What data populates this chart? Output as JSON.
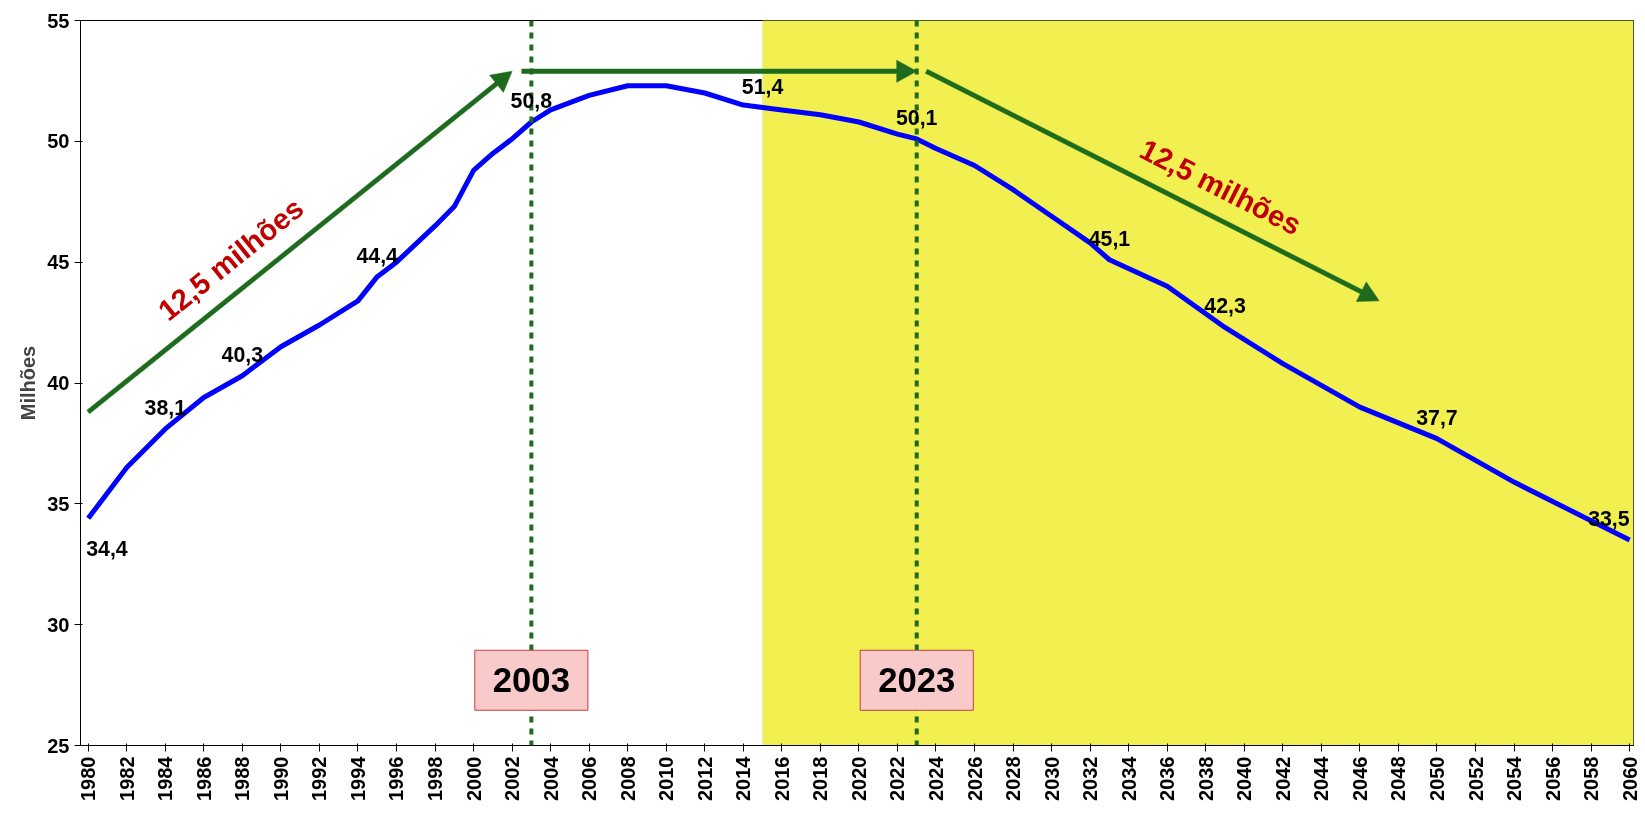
{
  "chart_data": {
    "type": "line",
    "ylabel": "Milhões",
    "x": [
      1980,
      1982,
      1984,
      1986,
      1988,
      1990,
      1992,
      1994,
      1995,
      1996,
      1998,
      1999,
      2000,
      2001,
      2002,
      2003,
      2004,
      2006,
      2008,
      2010,
      2012,
      2014,
      2015,
      2016,
      2018,
      2020,
      2022,
      2023,
      2024,
      2026,
      2028,
      2030,
      2032,
      2033,
      2036,
      2039,
      2042,
      2046,
      2050,
      2054,
      2058,
      2060
    ],
    "series": [
      {
        "color": "#0000ff",
        "values": [
          34.4,
          36.5,
          38.1,
          39.4,
          40.3,
          41.5,
          42.4,
          43.4,
          44.4,
          45.0,
          46.5,
          47.3,
          48.8,
          49.5,
          50.1,
          50.8,
          51.3,
          51.9,
          52.3,
          52.3,
          52.0,
          51.5,
          51.4,
          51.3,
          51.1,
          50.8,
          50.3,
          50.1,
          49.7,
          49.0,
          48.0,
          46.9,
          45.8,
          45.1,
          44.0,
          42.3,
          40.8,
          39.0,
          37.7,
          35.9,
          34.3,
          33.5
        ],
        "value_labels": [
          "34,4",
          null,
          "38,1",
          null,
          "40,3",
          null,
          null,
          null,
          "44,4",
          null,
          null,
          null,
          null,
          null,
          null,
          "50,8",
          null,
          null,
          null,
          null,
          null,
          null,
          "51,4",
          null,
          null,
          null,
          null,
          "50,1",
          null,
          null,
          null,
          null,
          null,
          "45,1",
          null,
          "42,3",
          null,
          null,
          "37,7",
          null,
          null,
          "33,5"
        ]
      }
    ],
    "xlim": [
      1979.6,
      2060.2
    ],
    "xticks": [
      1980,
      1982,
      1984,
      1986,
      1988,
      1990,
      1992,
      1994,
      1996,
      1998,
      2000,
      2002,
      2004,
      2006,
      2008,
      2010,
      2012,
      2014,
      2016,
      2018,
      2020,
      2022,
      2024,
      2026,
      2028,
      2030,
      2032,
      2034,
      2036,
      2038,
      2040,
      2042,
      2044,
      2046,
      2048,
      2050,
      2052,
      2054,
      2056,
      2058,
      2060
    ],
    "ylim": [
      25,
      55
    ],
    "yticks": [
      25,
      30,
      35,
      40,
      45,
      50,
      55
    ],
    "grid": false,
    "marker": "none",
    "line_style": "solid",
    "ref_lines": [
      {
        "axis": "x",
        "value": 2003,
        "label": "2003",
        "color": "#1e6b1e",
        "line_style": "dashed"
      },
      {
        "axis": "x",
        "value": 2023,
        "label": "2023",
        "color": "#1e6b1e",
        "line_style": "dashed"
      }
    ],
    "bands": [
      {
        "axis": "x",
        "from": 2015,
        "to": 2060.2,
        "color": "#f2ef50"
      }
    ],
    "annotations": [
      "12,5 milhões",
      "12,5 milhões"
    ]
  }
}
